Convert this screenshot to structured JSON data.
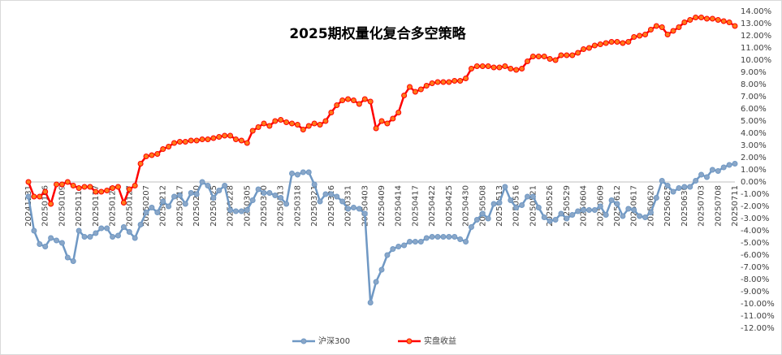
{
  "chart_data": {
    "type": "line",
    "title": "2025期权量化复合多空策略",
    "categories": [
      "20241231",
      null,
      null,
      "20250106",
      null,
      null,
      "20250109",
      null,
      null,
      "20250114",
      null,
      null,
      "20250117",
      null,
      null,
      "20250122",
      null,
      null,
      "20250127",
      null,
      null,
      "20250207",
      null,
      null,
      "20250212",
      null,
      null,
      "20250217",
      null,
      null,
      "20250220",
      null,
      null,
      "20250225",
      null,
      null,
      "20250228",
      null,
      null,
      "20250305",
      null,
      null,
      "20250310",
      null,
      null,
      "20250313",
      null,
      null,
      "20250318",
      null,
      null,
      "20250321",
      null,
      null,
      "20250326",
      null,
      null,
      "20250331",
      null,
      null,
      "20250403",
      null,
      null,
      "20250409",
      null,
      null,
      "20250414",
      null,
      null,
      "20250417",
      null,
      null,
      "20250422",
      null,
      null,
      "20250425",
      null,
      null,
      "20250430",
      null,
      null,
      "20250508",
      null,
      null,
      "20250513",
      null,
      null,
      "20250516",
      null,
      null,
      "20250521",
      null,
      null,
      "20250526",
      null,
      null,
      "20250529",
      null,
      null,
      "20250604",
      null,
      null,
      "20250609",
      null,
      null,
      "20250612",
      null,
      null,
      "20250617",
      null,
      null,
      "20250620",
      null,
      null,
      "20250625",
      null,
      null,
      "20250630",
      null,
      null,
      "20250703",
      null,
      null,
      "20250708",
      null,
      null,
      "20250711"
    ],
    "series": [
      {
        "name": "沪深300",
        "color": "#6f98c4",
        "marker_color": "#8aa7c8",
        "values": [
          -1.2,
          -4.0,
          -5.1,
          -5.3,
          -4.6,
          -4.8,
          -5.0,
          -6.2,
          -6.5,
          -4.0,
          -4.5,
          -4.5,
          -4.2,
          -3.8,
          -3.8,
          -4.5,
          -4.4,
          -3.7,
          -4.1,
          -4.6,
          -3.5,
          -2.5,
          -2.1,
          -2.5,
          -1.6,
          -2.0,
          -1.2,
          -1.1,
          -1.8,
          -0.9,
          -1.0,
          0.0,
          -0.3,
          -1.3,
          -0.7,
          -0.3,
          -2.3,
          -2.4,
          -2.4,
          -2.3,
          -1.5,
          -0.6,
          -0.9,
          -0.9,
          -1.1,
          -1.3,
          -1.8,
          0.7,
          0.6,
          0.8,
          0.8,
          -0.2,
          -1.6,
          -1.0,
          -1.0,
          -1.2,
          -1.6,
          -2.2,
          -2.1,
          -2.2,
          -2.6,
          -9.9,
          -8.2,
          -7.2,
          -6.0,
          -5.5,
          -5.3,
          -5.2,
          -4.9,
          -4.9,
          -4.9,
          -4.6,
          -4.5,
          -4.5,
          -4.5,
          -4.5,
          -4.5,
          -4.7,
          -4.9,
          -3.7,
          -3.1,
          -2.6,
          -3.0,
          -1.8,
          -1.7,
          -0.4,
          -1.5,
          -2.1,
          -1.9,
          -1.2,
          -1.2,
          -2.1,
          -2.9,
          -3.2,
          -3.1,
          -2.6,
          -3.0,
          -2.7,
          -2.4,
          -2.3,
          -2.3,
          -2.3,
          -2.0,
          -2.7,
          -1.5,
          -1.8,
          -2.8,
          -2.2,
          -2.3,
          -2.8,
          -2.9,
          -2.5,
          -1.3,
          0.1,
          -0.3,
          -0.8,
          -0.5,
          -0.4,
          -0.4,
          0.1,
          0.6,
          0.4,
          1.0,
          0.9,
          1.2,
          1.4,
          1.5
        ]
      },
      {
        "name": "实盘收益",
        "color": "#ff0000",
        "marker_color": "#ff7a1a",
        "values": [
          0.0,
          -1.2,
          -1.2,
          -0.8,
          -1.8,
          -0.2,
          -0.2,
          0.0,
          -0.3,
          -0.5,
          -0.4,
          -0.4,
          -0.8,
          -0.8,
          -0.7,
          -0.5,
          -0.4,
          -1.7,
          -0.6,
          -0.3,
          1.5,
          2.1,
          2.2,
          2.3,
          2.7,
          2.9,
          3.2,
          3.3,
          3.3,
          3.4,
          3.4,
          3.5,
          3.5,
          3.6,
          3.7,
          3.8,
          3.8,
          3.5,
          3.4,
          3.2,
          4.2,
          4.5,
          4.8,
          4.6,
          5.0,
          5.1,
          4.9,
          4.8,
          4.7,
          4.3,
          4.6,
          4.8,
          4.7,
          5.0,
          5.7,
          6.3,
          6.7,
          6.8,
          6.7,
          6.4,
          6.8,
          6.6,
          4.4,
          5.0,
          4.8,
          5.2,
          5.7,
          7.1,
          7.8,
          7.4,
          7.6,
          7.9,
          8.1,
          8.2,
          8.2,
          8.2,
          8.3,
          8.3,
          8.5,
          9.3,
          9.5,
          9.5,
          9.5,
          9.4,
          9.4,
          9.5,
          9.3,
          9.2,
          9.3,
          9.9,
          10.3,
          10.3,
          10.3,
          10.1,
          10.0,
          10.4,
          10.4,
          10.4,
          10.6,
          10.9,
          11.0,
          11.2,
          11.3,
          11.4,
          11.5,
          11.5,
          11.4,
          11.5,
          11.9,
          12.0,
          12.1,
          12.5,
          12.8,
          12.7,
          12.1,
          12.4,
          12.7,
          13.1,
          13.3,
          13.5,
          13.5,
          13.4,
          13.4,
          13.3,
          13.2,
          13.1,
          12.8
        ]
      }
    ],
    "ylim": [
      -12,
      14
    ],
    "yticks": [
      {
        "value": -12,
        "label": "-12.00%"
      },
      {
        "value": -11,
        "label": "-11.00%"
      },
      {
        "value": -10,
        "label": "-10.00%"
      },
      {
        "value": -9,
        "label": "-9.00%"
      },
      {
        "value": -8,
        "label": "-8.00%"
      },
      {
        "value": -7,
        "label": "-7.00%"
      },
      {
        "value": -6,
        "label": "-6.00%"
      },
      {
        "value": -5,
        "label": "-5.00%"
      },
      {
        "value": -4,
        "label": "-4.00%"
      },
      {
        "value": -3,
        "label": "-3.00%"
      },
      {
        "value": -2,
        "label": "-2.00%"
      },
      {
        "value": -1,
        "label": "-1.00%"
      },
      {
        "value": 0,
        "label": "0.00%"
      },
      {
        "value": 1,
        "label": "1.00%"
      },
      {
        "value": 2,
        "label": "2.00%"
      },
      {
        "value": 3,
        "label": "3.00%"
      },
      {
        "value": 4,
        "label": "4.00%"
      },
      {
        "value": 5,
        "label": "5.00%"
      },
      {
        "value": 6,
        "label": "6.00%"
      },
      {
        "value": 7,
        "label": "7.00%"
      },
      {
        "value": 8,
        "label": "8.00%"
      },
      {
        "value": 9,
        "label": "9.00%"
      },
      {
        "value": 10,
        "label": "10.00%"
      },
      {
        "value": 11,
        "label": "11.00%"
      },
      {
        "value": 12,
        "label": "12.00%"
      },
      {
        "value": 13,
        "label": "13.00%"
      },
      {
        "value": 14,
        "label": "14.00%"
      }
    ],
    "legend": "bottom"
  }
}
